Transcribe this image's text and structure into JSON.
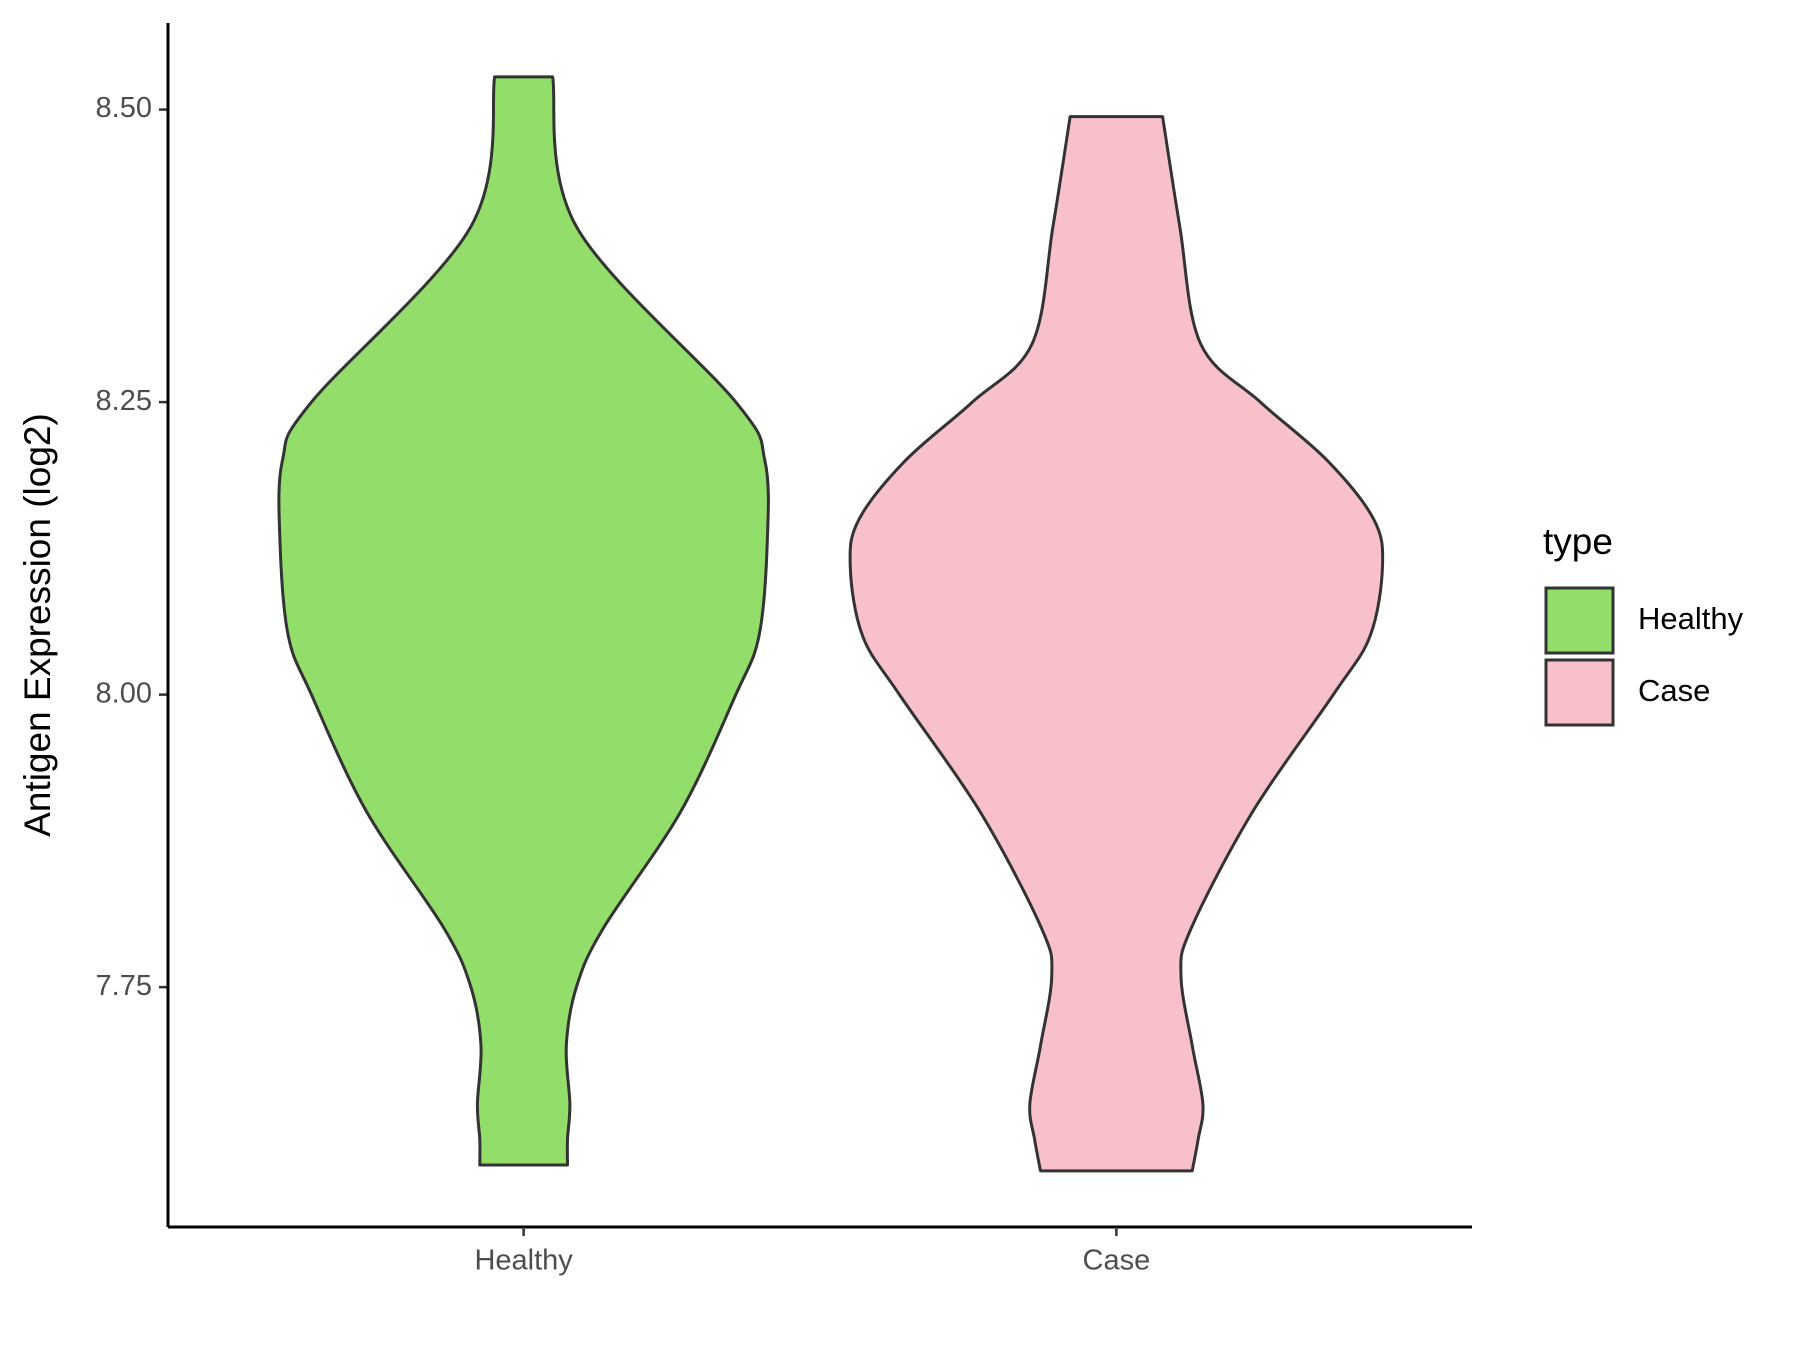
{
  "chart_data": {
    "type": "violin",
    "y_label": "Antigen Expression (log2)",
    "categories": [
      "Healthy",
      "Case"
    ],
    "legend_title": "type",
    "legend_position": "right",
    "ylim": [
      7.545,
      8.574
    ],
    "yticks": [
      {
        "value": 7.75,
        "label": "7.75"
      },
      {
        "value": 8,
        "label": "8.00"
      },
      {
        "value": 8.25,
        "label": "8.25"
      },
      {
        "value": 8.5,
        "label": "8.50"
      }
    ],
    "series": [
      {
        "name": "Healthy",
        "color": "#93dd6b",
        "y": [
          8.528,
          8.4,
          8.25,
          8.2,
          8.13,
          8.05,
          8.0,
          7.9,
          7.8,
          7.75,
          7.7,
          7.65,
          7.62,
          7.598
        ],
        "half_width": [
          0.049,
          0.089,
          0.358,
          0.407,
          0.411,
          0.397,
          0.358,
          0.265,
          0.134,
          0.089,
          0.072,
          0.078,
          0.074,
          0.074
        ]
      },
      {
        "name": "Case",
        "color": "#f7c0cb",
        "y": [
          8.494,
          8.4,
          8.3,
          8.25,
          8.2,
          8.15,
          8.11,
          8.05,
          8.0,
          7.9,
          7.8,
          7.76,
          7.7,
          7.65,
          7.62,
          7.593
        ],
        "half_width": [
          0.078,
          0.107,
          0.142,
          0.243,
          0.356,
          0.434,
          0.449,
          0.428,
          0.366,
          0.23,
          0.126,
          0.109,
          0.128,
          0.146,
          0.138,
          0.128
        ]
      }
    ]
  }
}
